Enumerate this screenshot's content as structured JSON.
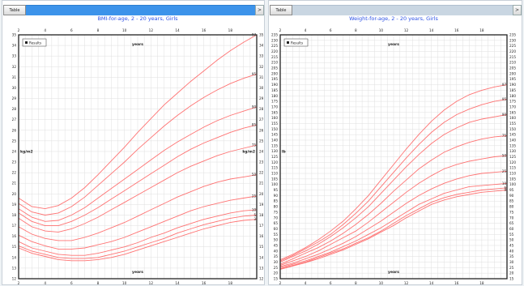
{
  "panels": [
    {
      "tab_label": "Table",
      "scroll_glyph": ">"
    },
    {
      "tab_label": "Table",
      "scroll_glyph": ">"
    }
  ],
  "chart_data": [
    {
      "type": "line",
      "title": "BMI-for-age, 2 - 20 years, Girls",
      "xlabel": "years",
      "ylabel": "kg/m2",
      "xlim": [
        2,
        20
      ],
      "ylim": [
        12,
        35
      ],
      "x_ticks": [
        2,
        4,
        6,
        8,
        10,
        12,
        14,
        16,
        18
      ],
      "y_ticks": [
        12,
        13,
        14,
        15,
        16,
        17,
        18,
        19,
        20,
        21,
        22,
        23,
        24,
        25,
        26,
        27,
        28,
        29,
        30,
        31,
        32,
        33,
        34,
        35
      ],
      "legend": {
        "label": "Results",
        "position": "top-left"
      },
      "grid": true,
      "x": [
        2,
        3,
        4,
        5,
        6,
        7,
        8,
        9,
        10,
        11,
        12,
        13,
        14,
        15,
        16,
        17,
        18,
        19,
        20
      ],
      "series": [
        {
          "name": "97",
          "values": [
            19.6,
            18.8,
            18.6,
            18.9,
            19.6,
            20.6,
            21.8,
            23.1,
            24.4,
            25.8,
            27.1,
            28.4,
            29.5,
            30.6,
            31.6,
            32.6,
            33.5,
            34.3,
            35.0
          ]
        },
        {
          "name": "95",
          "values": [
            19.1,
            18.3,
            18.0,
            18.2,
            18.8,
            19.7,
            20.8,
            21.9,
            23.0,
            24.2,
            25.3,
            26.4,
            27.4,
            28.3,
            29.1,
            29.8,
            30.4,
            30.9,
            31.3
          ]
        },
        {
          "name": "90",
          "values": [
            18.6,
            17.8,
            17.4,
            17.5,
            18.0,
            18.7,
            19.6,
            20.5,
            21.4,
            22.3,
            23.2,
            24.1,
            24.9,
            25.6,
            26.3,
            26.9,
            27.4,
            27.8,
            28.2
          ]
        },
        {
          "name": "85",
          "values": [
            18.2,
            17.4,
            17.0,
            17.0,
            17.4,
            18.0,
            18.7,
            19.5,
            20.3,
            21.1,
            21.9,
            22.7,
            23.5,
            24.2,
            24.8,
            25.3,
            25.8,
            26.2,
            26.5
          ]
        },
        {
          "name": "75",
          "values": [
            17.7,
            16.9,
            16.5,
            16.4,
            16.7,
            17.2,
            17.8,
            18.5,
            19.2,
            19.9,
            20.6,
            21.3,
            22.0,
            22.6,
            23.1,
            23.6,
            24.0,
            24.3,
            24.6
          ]
        },
        {
          "name": "50",
          "values": [
            16.9,
            16.2,
            15.8,
            15.6,
            15.6,
            15.9,
            16.3,
            16.8,
            17.3,
            17.9,
            18.5,
            19.1,
            19.7,
            20.2,
            20.7,
            21.1,
            21.4,
            21.6,
            21.8
          ]
        },
        {
          "name": "25",
          "values": [
            16.1,
            15.5,
            15.1,
            14.8,
            14.8,
            14.9,
            15.2,
            15.5,
            15.9,
            16.4,
            16.9,
            17.4,
            17.9,
            18.4,
            18.8,
            19.1,
            19.4,
            19.6,
            19.8
          ]
        },
        {
          "name": "10",
          "values": [
            15.5,
            14.9,
            14.6,
            14.3,
            14.2,
            14.2,
            14.4,
            14.7,
            15.0,
            15.4,
            15.9,
            16.3,
            16.8,
            17.2,
            17.6,
            17.9,
            18.2,
            18.4,
            18.5
          ]
        },
        {
          "name": "5",
          "values": [
            15.1,
            14.6,
            14.3,
            14.0,
            13.9,
            13.9,
            14.0,
            14.3,
            14.6,
            15.0,
            15.4,
            15.8,
            16.3,
            16.7,
            17.1,
            17.4,
            17.7,
            17.9,
            18.0
          ]
        },
        {
          "name": "3",
          "values": [
            14.9,
            14.4,
            14.1,
            13.8,
            13.7,
            13.7,
            13.8,
            14.0,
            14.3,
            14.7,
            15.1,
            15.5,
            15.9,
            16.3,
            16.7,
            17.0,
            17.3,
            17.5,
            17.6
          ]
        }
      ]
    },
    {
      "type": "line",
      "title": "Weight-for-age, 2 - 20 years, Girls",
      "xlabel": "years",
      "ylabel": "lb",
      "xlim": [
        2,
        20
      ],
      "ylim": [
        15,
        235
      ],
      "x_ticks": [
        2,
        4,
        6,
        8,
        10,
        12,
        14,
        16,
        18
      ],
      "y_ticks": [
        15,
        20,
        25,
        30,
        35,
        40,
        45,
        50,
        55,
        60,
        65,
        70,
        75,
        80,
        85,
        90,
        95,
        100,
        105,
        110,
        115,
        120,
        125,
        130,
        135,
        140,
        145,
        150,
        155,
        160,
        165,
        170,
        175,
        180,
        185,
        190,
        195,
        200,
        205,
        210,
        215,
        220,
        225,
        230,
        235
      ],
      "legend": {
        "label": "Results",
        "position": "top-left"
      },
      "grid": true,
      "x": [
        2,
        3,
        4,
        5,
        6,
        7,
        8,
        9,
        10,
        11,
        12,
        13,
        14,
        15,
        16,
        17,
        18,
        19,
        20
      ],
      "series": [
        {
          "name": "97",
          "values": [
            32,
            37,
            43,
            50,
            58,
            67,
            78,
            90,
            104,
            118,
            132,
            145,
            157,
            167,
            175,
            181,
            185,
            188,
            190
          ]
        },
        {
          "name": "95",
          "values": [
            31,
            36,
            42,
            48,
            55,
            64,
            74,
            85,
            98,
            111,
            124,
            136,
            147,
            156,
            163,
            168,
            172,
            175,
            177
          ]
        },
        {
          "name": "90",
          "values": [
            30,
            35,
            40,
            46,
            53,
            61,
            70,
            80,
            92,
            104,
            116,
            127,
            137,
            145,
            151,
            156,
            159,
            161,
            163
          ]
        },
        {
          "name": "75",
          "values": [
            28,
            33,
            38,
            43,
            49,
            56,
            64,
            73,
            83,
            94,
            104,
            114,
            122,
            129,
            134,
            138,
            141,
            143,
            144
          ]
        },
        {
          "name": "50",
          "values": [
            27,
            31,
            35,
            40,
            46,
            52,
            58,
            66,
            75,
            84,
            93,
            101,
            108,
            114,
            118,
            121,
            123,
            125,
            126
          ]
        },
        {
          "name": "25",
          "values": [
            26,
            29,
            33,
            37,
            42,
            47,
            53,
            60,
            67,
            75,
            83,
            90,
            96,
            101,
            105,
            108,
            110,
            111,
            112
          ]
        },
        {
          "name": "10",
          "values": [
            25,
            28,
            31,
            35,
            39,
            44,
            49,
            55,
            61,
            68,
            75,
            82,
            87,
            92,
            95,
            98,
            99,
            100,
            101
          ]
        },
        {
          "name": "5",
          "values": [
            24,
            27,
            30,
            34,
            38,
            42,
            47,
            52,
            58,
            65,
            72,
            78,
            84,
            88,
            91,
            93,
            95,
            96,
            97
          ]
        },
        {
          "name": "3",
          "values": [
            23.5,
            26.5,
            29.5,
            33,
            37,
            41,
            46,
            51,
            57,
            63,
            70,
            76,
            82,
            86,
            89,
            91,
            93,
            94,
            95
          ]
        }
      ]
    }
  ]
}
